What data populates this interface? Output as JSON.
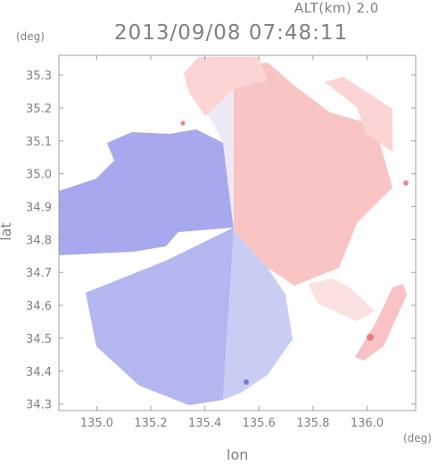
{
  "header": {
    "altitude_label": "ALT(km) 2.0",
    "datetime": "2013/09/08 07:48:11"
  },
  "chart_data": {
    "type": "heatmap",
    "title": "",
    "xlabel": "lon",
    "ylabel": "lat",
    "x_unit": "(deg)",
    "y_unit": "(deg)",
    "xlim": [
      134.86,
      136.18
    ],
    "ylim": [
      34.28,
      35.36
    ],
    "x_ticks": [
      "135.0",
      "135.2",
      "135.4",
      "135.6",
      "135.8",
      "136.0"
    ],
    "x_tick_values": [
      135.0,
      135.2,
      135.4,
      135.6,
      135.8,
      136.0
    ],
    "y_ticks": [
      "35.3",
      "35.2",
      "35.1",
      "35.0",
      "34.9",
      "34.8",
      "34.7",
      "34.6",
      "34.5",
      "34.4",
      "34.3"
    ],
    "y_tick_values": [
      35.3,
      35.2,
      35.1,
      35.0,
      34.9,
      34.8,
      34.7,
      34.6,
      34.5,
      34.4,
      34.3
    ],
    "radar_center": [
      135.52,
      34.82
    ],
    "colors": {
      "approaching": "#a8a8ee",
      "receding": "#f8b0b0",
      "axis": "#a0a0a0",
      "text": "#808080"
    },
    "grid": false
  }
}
